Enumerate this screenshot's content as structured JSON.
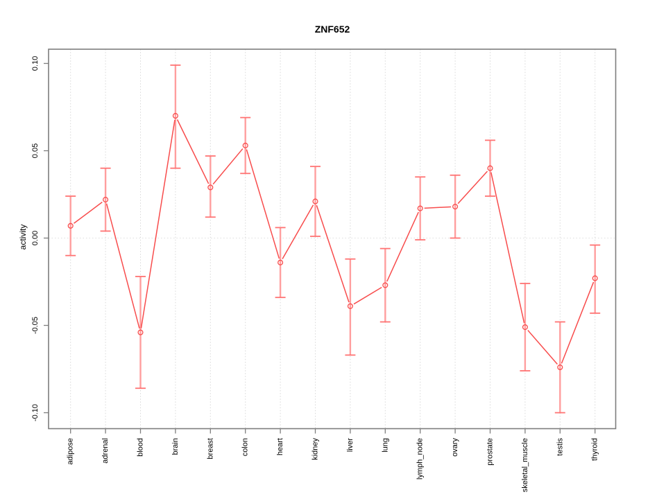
{
  "figure": {
    "title": "ZNF652",
    "background": "#ffffff"
  },
  "chart_data": {
    "type": "line",
    "title": "ZNF652",
    "xlabel": "",
    "ylabel": "activity",
    "legend": "none",
    "grid": "vertical dotted gridline per category + dotted horizontal line at y=0",
    "error_bars": true,
    "point_style": "open-circle",
    "categories": [
      "adipose",
      "adrenal",
      "blood",
      "brain",
      "breast",
      "colon",
      "heart",
      "kidney",
      "liver",
      "lung",
      "lymph_node",
      "ovary",
      "prostate",
      "skeletal_muscle",
      "testis",
      "thyroid"
    ],
    "series": [
      {
        "name": "ZNF652 activity",
        "values": [
          0.007,
          0.022,
          -0.054,
          0.07,
          0.029,
          0.053,
          -0.014,
          0.021,
          -0.039,
          -0.027,
          0.017,
          0.018,
          0.04,
          -0.051,
          -0.074,
          -0.023
        ],
        "lower": [
          -0.01,
          0.004,
          -0.086,
          0.04,
          0.012,
          0.037,
          -0.034,
          0.001,
          -0.067,
          -0.048,
          -0.001,
          0.0,
          0.024,
          -0.076,
          -0.1,
          -0.043
        ],
        "upper": [
          0.024,
          0.04,
          -0.022,
          0.099,
          0.047,
          0.069,
          0.006,
          0.041,
          -0.012,
          -0.006,
          0.035,
          0.036,
          0.056,
          -0.026,
          -0.048,
          -0.004
        ]
      }
    ],
    "ylim": [
      -0.109,
      0.108
    ],
    "yticks": [
      0.1,
      0.05,
      0.0,
      -0.05,
      -0.1
    ],
    "ytick_labels": [
      "0.10",
      "0.05",
      "0.00",
      "-0.05",
      "-0.10"
    ],
    "colors": {
      "line": "#f84c4c",
      "point": "#f84c4c",
      "error_stem": "#ff9e9e",
      "error_cap": "#ff7373",
      "grid": "#d8d8d8",
      "zero_line": "#dedede",
      "box": "#7d7d7d",
      "text": "#000000",
      "background": "#ffffff"
    }
  }
}
